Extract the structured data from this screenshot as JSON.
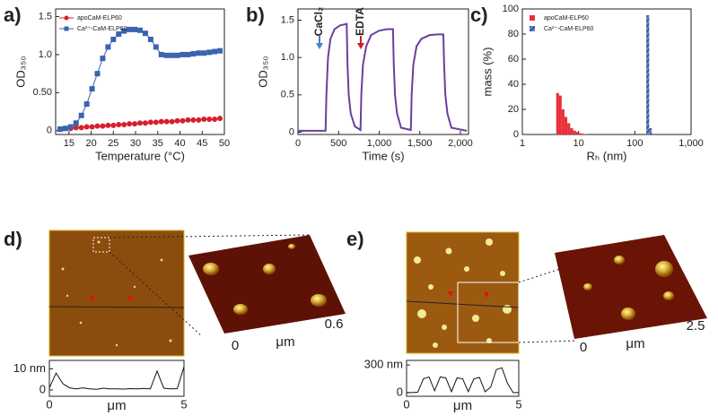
{
  "chart_data": [
    {
      "type": "line",
      "panel": "a)",
      "xlabel": "Temperature (°C)",
      "ylabel": "OD₃₅₀",
      "xlim": [
        12,
        50
      ],
      "xticks": [
        15,
        20,
        25,
        30,
        35,
        40,
        45,
        50
      ],
      "ylim": [
        -0.05,
        1.6
      ],
      "yticks": [
        0,
        {
          "value": 0.5,
          "label": "0.50"
        },
        {
          "value": 1.0,
          "label": "1.0"
        },
        1.5
      ],
      "x": [
        13,
        14.2,
        15.4,
        16.6,
        17.8,
        19,
        20.2,
        21.4,
        22.6,
        23.8,
        25,
        26.2,
        27.4,
        28.6,
        29.8,
        31,
        32.2,
        33.4,
        34.6,
        35.8,
        37,
        38.2,
        39.4,
        40.6,
        41.8,
        43,
        44.2,
        45.4,
        46.6,
        47.8,
        49
      ],
      "series": [
        {
          "name": "apoCaM-ELP60",
          "color": "#d81e2c",
          "marker": "circle",
          "values": [
            0.02,
            0.03,
            0.03,
            0.04,
            0.04,
            0.05,
            0.05,
            0.06,
            0.06,
            0.07,
            0.07,
            0.08,
            0.08,
            0.09,
            0.09,
            0.1,
            0.1,
            0.11,
            0.11,
            0.12,
            0.12,
            0.12,
            0.13,
            0.13,
            0.14,
            0.14,
            0.14,
            0.15,
            0.15,
            0.15,
            0.16
          ]
        },
        {
          "name": "Ca²⁺-CaM-ELP60",
          "color": "#3a63b0",
          "marker": "square",
          "values": [
            0.02,
            0.03,
            0.05,
            0.1,
            0.2,
            0.35,
            0.55,
            0.75,
            0.95,
            1.1,
            1.2,
            1.27,
            1.31,
            1.33,
            1.33,
            1.32,
            1.28,
            1.2,
            1.1,
            1.0,
            0.99,
            0.99,
            0.99,
            1.0,
            1.0,
            1.01,
            1.02,
            1.02,
            1.03,
            1.04,
            1.05
          ]
        }
      ]
    },
    {
      "type": "line",
      "panel": "b)",
      "xlabel": "Time (s)",
      "ylabel": "OD₃₅₀",
      "xlim": [
        0,
        2100
      ],
      "xticks": [
        0,
        500,
        {
          "value": 1000,
          "label": "1,000"
        },
        {
          "value": 1500,
          "label": "1,500"
        },
        {
          "value": 2000,
          "label": "2,000"
        }
      ],
      "ylim": [
        -0.03,
        1.65
      ],
      "yticks": [
        0,
        0.5,
        {
          "value": 1.0,
          "label": "1.0"
        },
        1.5
      ],
      "annotations": [
        {
          "text": "CaCl₂",
          "color": "#4a82c4"
        },
        {
          "text": "EDTA",
          "color": "#d01f2a"
        }
      ],
      "x": [
        0,
        340,
        350,
        370,
        400,
        450,
        520,
        600,
        610,
        625,
        650,
        700,
        770,
        780,
        800,
        840,
        900,
        1000,
        1100,
        1170,
        1180,
        1195,
        1220,
        1270,
        1390,
        1400,
        1420,
        1460,
        1520,
        1620,
        1720,
        1790,
        1800,
        1815,
        1840,
        1890,
        2080
      ],
      "series": [
        {
          "name": null,
          "color": "#6a3f9a",
          "values": [
            0.02,
            0.02,
            0.5,
            1.0,
            1.25,
            1.38,
            1.43,
            1.45,
            0.9,
            0.5,
            0.25,
            0.08,
            0.03,
            0.5,
            0.9,
            1.15,
            1.3,
            1.36,
            1.38,
            1.38,
            0.9,
            0.5,
            0.25,
            0.06,
            0.03,
            0.5,
            0.9,
            1.15,
            1.25,
            1.3,
            1.31,
            1.31,
            0.9,
            0.5,
            0.25,
            0.06,
            0.02
          ]
        }
      ]
    },
    {
      "type": "histogram",
      "panel": "c)",
      "xlabel": "Rₕ (nm)",
      "ylabel": "mass (%)",
      "xlog": true,
      "xlim": [
        1,
        1000
      ],
      "xticks": [
        1,
        10,
        100,
        {
          "value": 1000,
          "label": "1,000"
        }
      ],
      "ylim": [
        0,
        100
      ],
      "yticks": [
        0,
        20,
        40,
        60,
        80,
        100
      ],
      "series": [
        {
          "name": "apoCaM-ELP60",
          "color": "#e8303a",
          "bins": [
            4,
            4.5,
            5,
            5.6,
            6.3,
            7.1,
            8,
            9,
            10,
            11.2,
            12.6,
            14.1
          ],
          "values": [
            33,
            31,
            20,
            14,
            9,
            5,
            3,
            2,
            1,
            0.6,
            0.3
          ]
        },
        {
          "name": "Ca²⁺-CaM-ELP60",
          "color": "#3a5fa0",
          "bins": [
            160,
            180,
            200
          ],
          "values": [
            95,
            5
          ]
        }
      ]
    },
    {
      "type": "line",
      "xlabel": "μm",
      "xlim": [
        0,
        5
      ],
      "xticks": [
        0,
        5
      ],
      "ylim": [
        -3,
        14
      ],
      "yticks": [
        0,
        {
          "value": 10,
          "label": "10 nm"
        }
      ],
      "x": [
        0,
        0.25,
        0.5,
        0.75,
        1,
        1.25,
        1.5,
        1.75,
        2,
        2.25,
        2.5,
        2.75,
        3,
        3.25,
        3.5,
        3.75,
        4,
        4.25,
        4.5,
        4.75,
        5
      ],
      "series": [
        {
          "name": null,
          "color": "#111",
          "values": [
            1,
            8,
            3,
            1,
            0.5,
            1,
            0.5,
            0.3,
            0.8,
            0.5,
            0.5,
            0.4,
            0.6,
            0.5,
            0.7,
            0.5,
            9,
            0.8,
            0.5,
            0.6,
            11
          ]
        }
      ]
    },
    {
      "type": "line",
      "xlabel": "μm",
      "xlim": [
        0,
        5
      ],
      "xticks": [
        0,
        5
      ],
      "ylim": [
        -40,
        350
      ],
      "yticks": [
        0,
        {
          "value": 300,
          "label": "300 nm"
        }
      ],
      "x": [
        0,
        0.25,
        0.5,
        0.75,
        1,
        1.25,
        1.5,
        1.75,
        2,
        2.25,
        2.5,
        2.75,
        3,
        3.25,
        3.5,
        3.75,
        4,
        4.25,
        4.5,
        4.75,
        5
      ],
      "series": [
        {
          "name": null,
          "color": "#111",
          "values": [
            0,
            0,
            5,
            150,
            170,
            20,
            170,
            160,
            10,
            160,
            150,
            10,
            150,
            165,
            10,
            60,
            250,
            270,
            100,
            0,
            0
          ]
        }
      ]
    }
  ],
  "images": [
    {
      "label": "d)",
      "axis_start": "0",
      "axis_unit": "μm",
      "axis_end": "0.6"
    },
    {
      "label": "e)",
      "axis_start": "0",
      "axis_unit": "μm",
      "axis_end": "2.5"
    }
  ]
}
